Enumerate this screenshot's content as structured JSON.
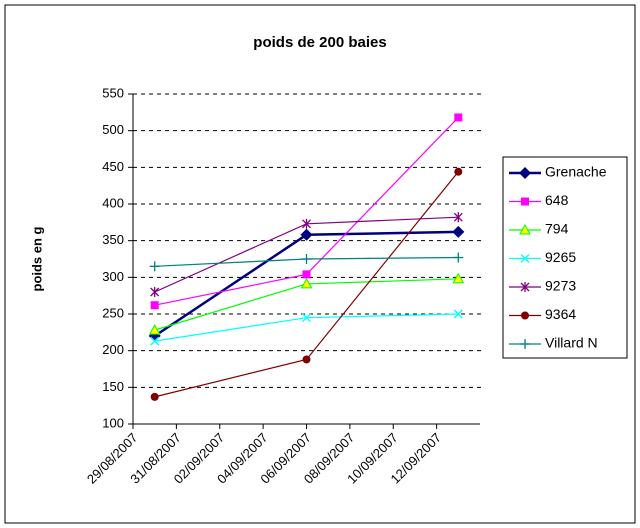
{
  "chart_data": {
    "type": "line",
    "title": "poids de 200 baies",
    "y_label": "poids en g",
    "x": [
      "30/08/2007",
      "06/09/2007",
      "13/09/2007"
    ],
    "xlim": [
      "29/08/2007",
      "14/09/2007"
    ],
    "xticks": [
      "29/08/2007",
      "31/08/2007",
      "02/09/2007",
      "04/09/2007",
      "06/09/2007",
      "08/09/2007",
      "10/09/2007",
      "12/09/2007"
    ],
    "ylim": [
      100,
      550
    ],
    "yticks": [
      100,
      150,
      200,
      250,
      300,
      350,
      400,
      450,
      500,
      550
    ],
    "grid": true,
    "legend": "right",
    "series": [
      {
        "name": "Grenache",
        "color": "#000080",
        "marker": "diamond",
        "values": [
          220,
          358,
          362
        ]
      },
      {
        "name": "648",
        "color": "#ff00ff",
        "marker": "square",
        "values": [
          262,
          304,
          518
        ]
      },
      {
        "name": "794",
        "color": "#00ff00",
        "marker": "triangle",
        "values": [
          228,
          291,
          298
        ]
      },
      {
        "name": "9265",
        "color": "#00ffff",
        "marker": "x",
        "values": [
          213,
          245,
          250
        ]
      },
      {
        "name": "9273",
        "color": "#800080",
        "marker": "star",
        "values": [
          280,
          373,
          382
        ]
      },
      {
        "name": "9364",
        "color": "#800000",
        "marker": "circle",
        "values": [
          137,
          188,
          444
        ]
      },
      {
        "name": "Villard N",
        "color": "#008080",
        "marker": "plus",
        "values": [
          315,
          325,
          327
        ]
      }
    ]
  }
}
